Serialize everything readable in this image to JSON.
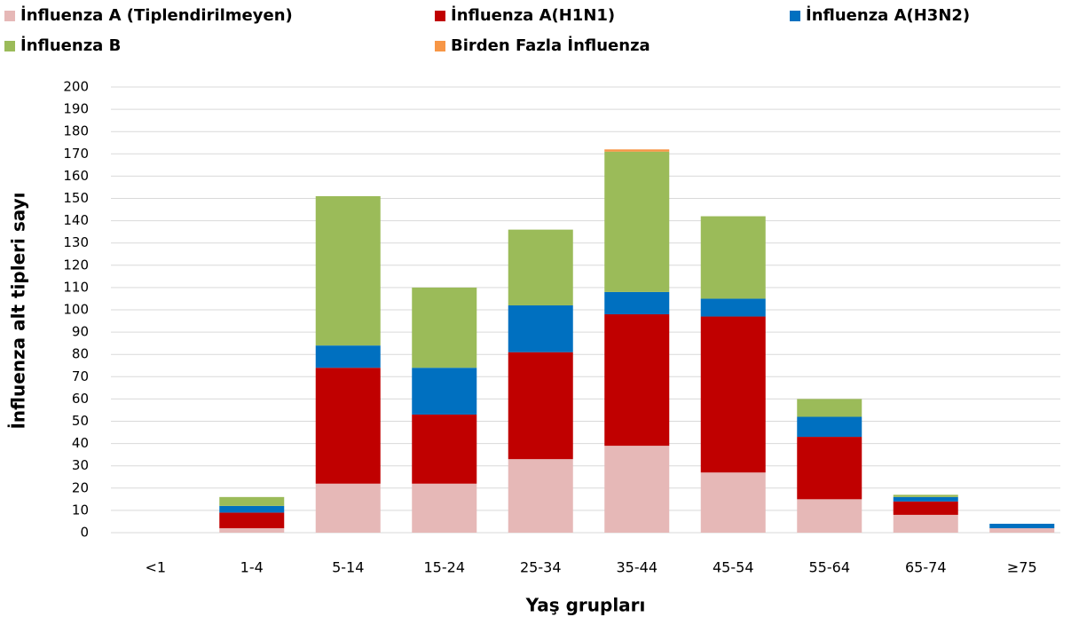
{
  "chart_data": {
    "type": "stacked_bar",
    "x_label": "Yaş grupları",
    "y_label": "İnfluenza alt tipleri sayı",
    "categories": [
      "<1",
      "1-4",
      "5-14",
      "15-24",
      "25-34",
      "35-44",
      "45-54",
      "55-64",
      "65-74",
      "≥75"
    ],
    "series": [
      {
        "name": "İnfluenza A (Tiplendirilmeyen)",
        "color": "#e6b8b7",
        "values": [
          0,
          2,
          22,
          22,
          33,
          39,
          27,
          15,
          8,
          2
        ]
      },
      {
        "name": "İnfluenza A(H1N1)",
        "color": "#c00000",
        "values": [
          0,
          7,
          52,
          31,
          48,
          59,
          70,
          28,
          6,
          0
        ]
      },
      {
        "name": "İnfluenza A(H3N2)",
        "color": "#0070c0",
        "values": [
          0,
          3,
          10,
          21,
          21,
          10,
          8,
          9,
          2,
          2
        ]
      },
      {
        "name": "İnfluenza B",
        "color": "#9bbb59",
        "values": [
          0,
          4,
          67,
          36,
          34,
          63,
          37,
          8,
          1,
          0
        ]
      },
      {
        "name": "Birden Fazla İnfluenza",
        "color": "#f79646",
        "values": [
          0,
          0,
          0,
          0,
          0,
          1,
          0,
          0,
          0,
          0
        ]
      }
    ],
    "ylim": [
      0,
      200
    ],
    "yticks": [
      0,
      10,
      20,
      30,
      40,
      50,
      60,
      70,
      80,
      90,
      100,
      110,
      120,
      130,
      140,
      150,
      160,
      170,
      180,
      190,
      200
    ],
    "grid": true,
    "legend": "top"
  }
}
